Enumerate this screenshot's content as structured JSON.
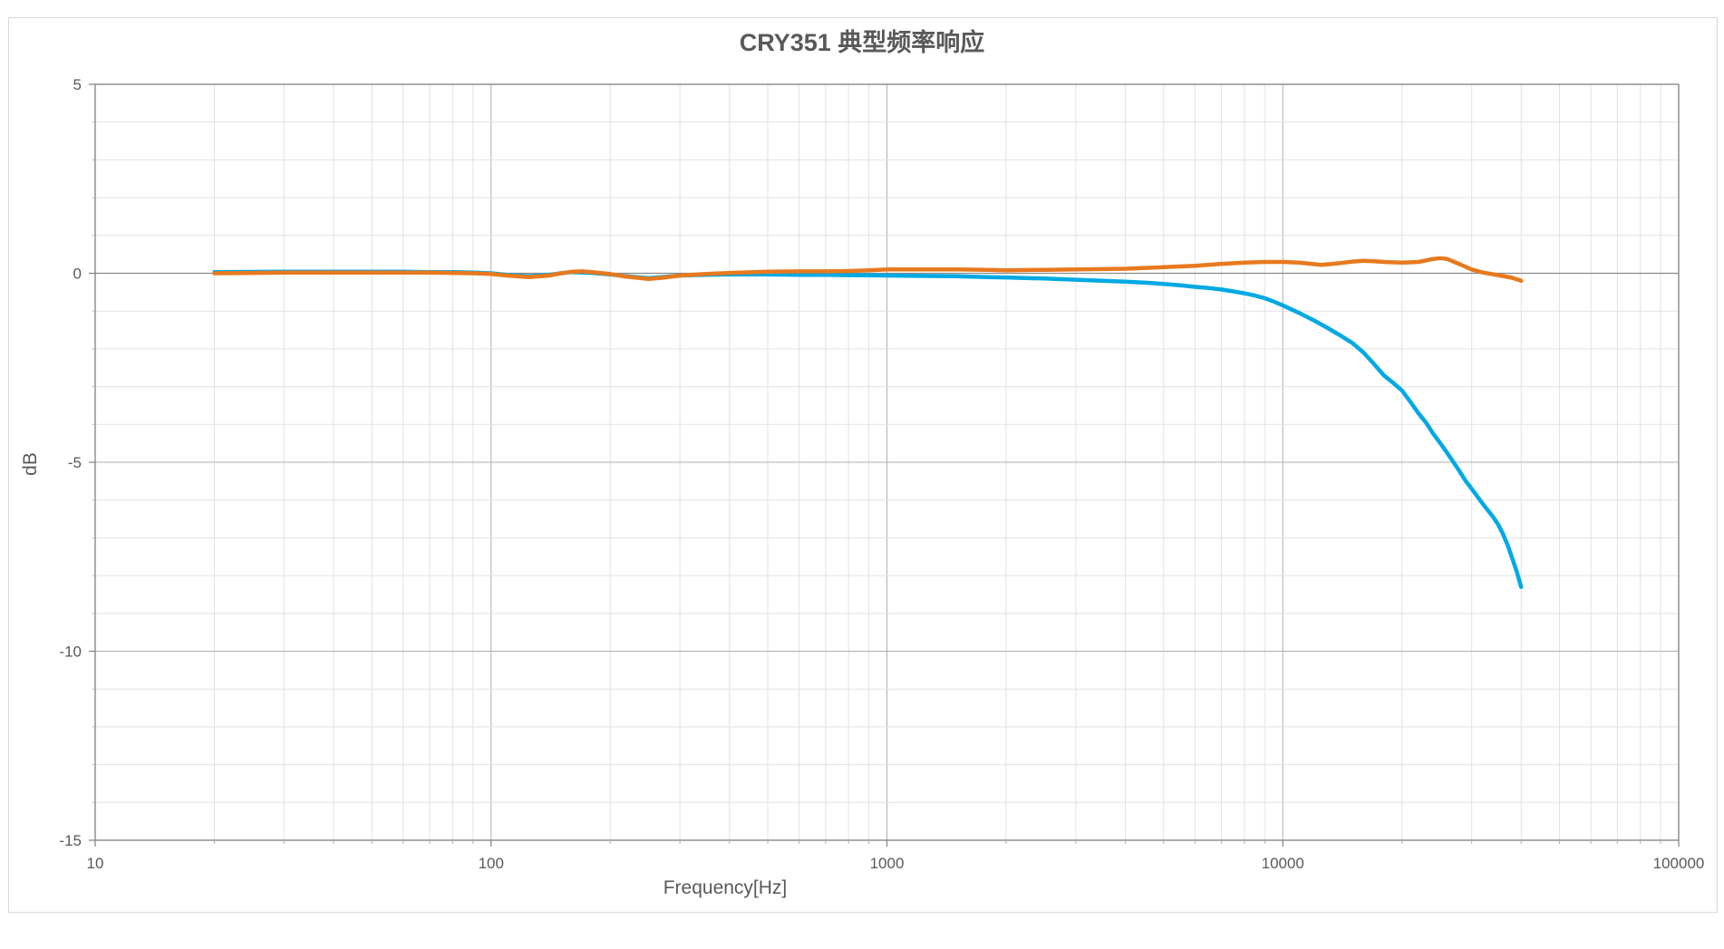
{
  "figure": {
    "background": "#FFFFFF",
    "border_color": "#D9D9D9"
  },
  "chart_data": {
    "type": "line",
    "title": "CRY351 典型频率响应",
    "xlabel": "Frequency[Hz]",
    "ylabel": "dB",
    "x_scale": "log",
    "xlim": [
      10,
      100000
    ],
    "ylim": [
      -15,
      5
    ],
    "x_ticks": [
      10,
      100,
      1000,
      10000,
      100000
    ],
    "x_tick_labels": [
      "10",
      "100",
      "1000",
      "10000",
      "100000"
    ],
    "y_ticks": [
      5,
      0,
      -5,
      -10,
      -15
    ],
    "y_tick_labels": [
      "5",
      "0",
      "-5",
      "-10",
      "-15"
    ],
    "y_minor_step_db": 1,
    "grid": "both-minor-and-major",
    "legend": "none",
    "colors": {
      "minor_grid": "#E2E2E2",
      "major_grid": "#AFAFAF",
      "zero_line": "#8A8A8A",
      "plot_border": "#808080",
      "text": "#595959"
    },
    "series": [
      {
        "id": "blue",
        "color": "#00A9E4",
        "points": [
          [
            20,
            0.03
          ],
          [
            30,
            0.04
          ],
          [
            40,
            0.04
          ],
          [
            50,
            0.04
          ],
          [
            60,
            0.04
          ],
          [
            70,
            0.03
          ],
          [
            80,
            0.03
          ],
          [
            90,
            0.02
          ],
          [
            100,
            0
          ],
          [
            110,
            -0.04
          ],
          [
            125,
            -0.08
          ],
          [
            140,
            -0.04
          ],
          [
            150,
            0
          ],
          [
            160,
            0.03
          ],
          [
            180,
            0.01
          ],
          [
            200,
            -0.03
          ],
          [
            220,
            -0.08
          ],
          [
            250,
            -0.13
          ],
          [
            270,
            -0.1
          ],
          [
            300,
            -0.06
          ],
          [
            350,
            -0.04
          ],
          [
            400,
            -0.03
          ],
          [
            500,
            -0.03
          ],
          [
            600,
            -0.04
          ],
          [
            700,
            -0.04
          ],
          [
            800,
            -0.05
          ],
          [
            900,
            -0.05
          ],
          [
            1000,
            -0.06
          ],
          [
            1200,
            -0.07
          ],
          [
            1500,
            -0.08
          ],
          [
            1800,
            -0.1
          ],
          [
            2000,
            -0.11
          ],
          [
            2500,
            -0.14
          ],
          [
            3000,
            -0.17
          ],
          [
            3500,
            -0.2
          ],
          [
            4000,
            -0.22
          ],
          [
            4500,
            -0.25
          ],
          [
            5000,
            -0.28
          ],
          [
            5500,
            -0.32
          ],
          [
            6000,
            -0.36
          ],
          [
            6500,
            -0.39
          ],
          [
            7000,
            -0.43
          ],
          [
            7500,
            -0.48
          ],
          [
            8000,
            -0.53
          ],
          [
            8500,
            -0.59
          ],
          [
            9000,
            -0.66
          ],
          [
            9500,
            -0.75
          ],
          [
            10000,
            -0.85
          ],
          [
            11000,
            -1.05
          ],
          [
            12000,
            -1.25
          ],
          [
            13000,
            -1.45
          ],
          [
            14000,
            -1.65
          ],
          [
            15000,
            -1.85
          ],
          [
            16000,
            -2.1
          ],
          [
            17000,
            -2.4
          ],
          [
            18000,
            -2.7
          ],
          [
            19000,
            -2.9
          ],
          [
            20000,
            -3.1
          ],
          [
            21000,
            -3.4
          ],
          [
            22000,
            -3.7
          ],
          [
            23000,
            -3.95
          ],
          [
            24000,
            -4.25
          ],
          [
            25000,
            -4.5
          ],
          [
            26000,
            -4.75
          ],
          [
            27000,
            -5.0
          ],
          [
            28000,
            -5.25
          ],
          [
            29000,
            -5.5
          ],
          [
            30000,
            -5.7
          ],
          [
            32000,
            -6.1
          ],
          [
            34000,
            -6.45
          ],
          [
            35000,
            -6.65
          ],
          [
            36000,
            -6.9
          ],
          [
            37000,
            -7.2
          ],
          [
            38000,
            -7.55
          ],
          [
            39000,
            -7.9
          ],
          [
            40000,
            -8.3
          ]
        ]
      },
      {
        "id": "orange",
        "color": "#E8791E",
        "points": [
          [
            20,
            0
          ],
          [
            25,
            0.01
          ],
          [
            30,
            0.02
          ],
          [
            40,
            0.02
          ],
          [
            50,
            0.02
          ],
          [
            60,
            0.02
          ],
          [
            70,
            0.02
          ],
          [
            80,
            0.01
          ],
          [
            90,
            0
          ],
          [
            100,
            -0.02
          ],
          [
            110,
            -0.06
          ],
          [
            125,
            -0.1
          ],
          [
            140,
            -0.06
          ],
          [
            150,
            0
          ],
          [
            160,
            0.04
          ],
          [
            170,
            0.05
          ],
          [
            180,
            0.03
          ],
          [
            200,
            -0.02
          ],
          [
            220,
            -0.09
          ],
          [
            250,
            -0.15
          ],
          [
            270,
            -0.12
          ],
          [
            300,
            -0.06
          ],
          [
            350,
            -0.02
          ],
          [
            400,
            0.01
          ],
          [
            500,
            0.04
          ],
          [
            600,
            0.05
          ],
          [
            700,
            0.05
          ],
          [
            800,
            0.06
          ],
          [
            900,
            0.08
          ],
          [
            1000,
            0.1
          ],
          [
            1200,
            0.1
          ],
          [
            1500,
            0.1
          ],
          [
            1800,
            0.09
          ],
          [
            2000,
            0.08
          ],
          [
            2500,
            0.09
          ],
          [
            3000,
            0.1
          ],
          [
            3500,
            0.11
          ],
          [
            4000,
            0.12
          ],
          [
            5000,
            0.16
          ],
          [
            6000,
            0.2
          ],
          [
            7000,
            0.25
          ],
          [
            8000,
            0.28
          ],
          [
            9000,
            0.3
          ],
          [
            10000,
            0.3
          ],
          [
            11000,
            0.28
          ],
          [
            12500,
            0.22
          ],
          [
            14000,
            0.27
          ],
          [
            15000,
            0.31
          ],
          [
            16000,
            0.33
          ],
          [
            17000,
            0.32
          ],
          [
            18000,
            0.3
          ],
          [
            20000,
            0.28
          ],
          [
            22000,
            0.3
          ],
          [
            24000,
            0.38
          ],
          [
            25000,
            0.4
          ],
          [
            26000,
            0.38
          ],
          [
            28000,
            0.24
          ],
          [
            30000,
            0.1
          ],
          [
            32000,
            0.02
          ],
          [
            35000,
            -0.05
          ],
          [
            38000,
            -0.12
          ],
          [
            40000,
            -0.2
          ]
        ]
      }
    ]
  }
}
